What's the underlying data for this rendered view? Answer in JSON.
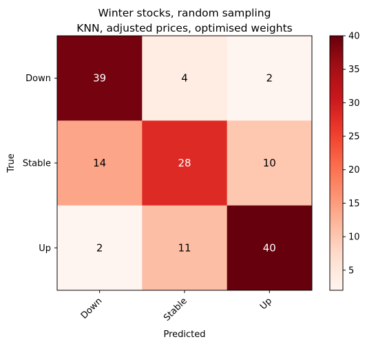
{
  "chart_data": {
    "type": "heatmap",
    "title_lines": [
      "Winter stocks, random sampling",
      "KNN, adjusted prices, optimised weights"
    ],
    "xlabel": "Predicted",
    "ylabel": "True",
    "x_categories": [
      "Down",
      "Stable",
      "Up"
    ],
    "y_categories": [
      "Down",
      "Stable",
      "Up"
    ],
    "matrix": [
      [
        39,
        4,
        2
      ],
      [
        14,
        28,
        10
      ],
      [
        2,
        11,
        40
      ]
    ],
    "colormap": "Reds",
    "color_range": [
      2,
      40
    ],
    "colorbar_ticks": [
      "5",
      "10",
      "15",
      "20",
      "25",
      "30",
      "35",
      "40"
    ],
    "grid": false
  }
}
